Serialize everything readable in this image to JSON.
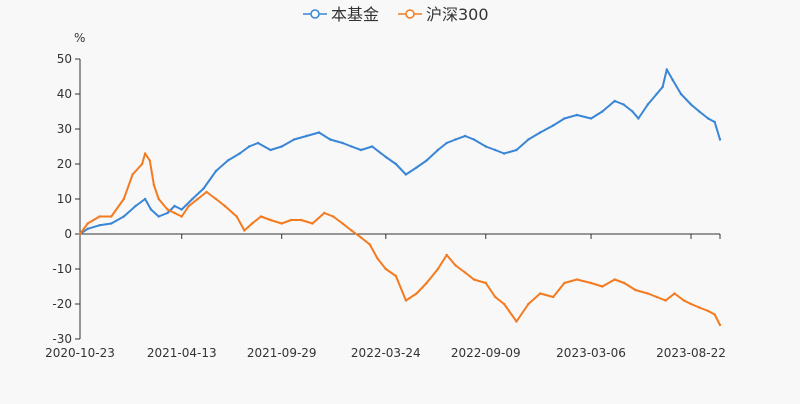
{
  "chart_data": {
    "type": "line",
    "title": "",
    "ylabel": "%",
    "xlabel": "",
    "ylim": [
      -30,
      50
    ],
    "yticks": [
      -30,
      -20,
      -10,
      0,
      10,
      20,
      30,
      40,
      50
    ],
    "xlim": [
      "2020-10-23",
      "2023-10-10"
    ],
    "xticks": [
      "2020-10-23",
      "2021-04-13",
      "2021-09-29",
      "2022-03-24",
      "2022-09-09",
      "2023-03-06",
      "2023-08-22"
    ],
    "grid": false,
    "legend": "top-center",
    "series": [
      {
        "name": "本基金",
        "color": "#3a86d6",
        "points": [
          [
            "2020-10-23",
            0
          ],
          [
            "2020-11-05",
            1.5
          ],
          [
            "2020-11-25",
            2.5
          ],
          [
            "2020-12-15",
            3
          ],
          [
            "2021-01-05",
            5
          ],
          [
            "2021-01-25",
            8
          ],
          [
            "2021-02-10",
            10
          ],
          [
            "2021-02-20",
            7
          ],
          [
            "2021-03-05",
            5
          ],
          [
            "2021-03-20",
            6
          ],
          [
            "2021-04-01",
            8
          ],
          [
            "2021-04-13",
            7
          ],
          [
            "2021-05-01",
            10
          ],
          [
            "2021-05-20",
            13
          ],
          [
            "2021-06-10",
            18
          ],
          [
            "2021-06-30",
            21
          ],
          [
            "2021-07-20",
            23
          ],
          [
            "2021-08-05",
            25
          ],
          [
            "2021-08-20",
            26
          ],
          [
            "2021-09-10",
            24
          ],
          [
            "2021-09-29",
            25
          ],
          [
            "2021-10-20",
            27
          ],
          [
            "2021-11-10",
            28
          ],
          [
            "2021-12-01",
            29
          ],
          [
            "2021-12-20",
            27
          ],
          [
            "2022-01-10",
            26
          ],
          [
            "2022-01-25",
            25
          ],
          [
            "2022-02-10",
            24
          ],
          [
            "2022-03-01",
            25
          ],
          [
            "2022-03-24",
            22
          ],
          [
            "2022-04-10",
            20
          ],
          [
            "2022-04-27",
            17
          ],
          [
            "2022-05-15",
            19
          ],
          [
            "2022-06-01",
            21
          ],
          [
            "2022-06-20",
            24
          ],
          [
            "2022-07-05",
            26
          ],
          [
            "2022-07-20",
            27
          ],
          [
            "2022-08-05",
            28
          ],
          [
            "2022-08-20",
            27
          ],
          [
            "2022-09-09",
            25
          ],
          [
            "2022-09-25",
            24
          ],
          [
            "2022-10-10",
            23
          ],
          [
            "2022-10-31",
            24
          ],
          [
            "2022-11-20",
            27
          ],
          [
            "2022-12-10",
            29
          ],
          [
            "2023-01-01",
            31
          ],
          [
            "2023-01-20",
            33
          ],
          [
            "2023-02-10",
            34
          ],
          [
            "2023-03-06",
            33
          ],
          [
            "2023-03-25",
            35
          ],
          [
            "2023-04-15",
            38
          ],
          [
            "2023-04-30",
            37
          ],
          [
            "2023-05-15",
            35
          ],
          [
            "2023-05-25",
            33
          ],
          [
            "2023-06-10",
            37
          ],
          [
            "2023-06-25",
            40
          ],
          [
            "2023-07-05",
            42
          ],
          [
            "2023-07-12",
            47
          ],
          [
            "2023-07-22",
            44
          ],
          [
            "2023-08-05",
            40
          ],
          [
            "2023-08-22",
            37
          ],
          [
            "2023-09-05",
            35
          ],
          [
            "2023-09-20",
            33
          ],
          [
            "2023-10-01",
            32
          ],
          [
            "2023-10-10",
            27
          ]
        ]
      },
      {
        "name": "沪深300",
        "color": "#f47a20",
        "points": [
          [
            "2020-10-23",
            0
          ],
          [
            "2020-11-05",
            3
          ],
          [
            "2020-11-25",
            5
          ],
          [
            "2020-12-15",
            5
          ],
          [
            "2021-01-05",
            10
          ],
          [
            "2021-01-20",
            17
          ],
          [
            "2021-02-05",
            20
          ],
          [
            "2021-02-10",
            23
          ],
          [
            "2021-02-18",
            21
          ],
          [
            "2021-02-25",
            14
          ],
          [
            "2021-03-05",
            10
          ],
          [
            "2021-03-20",
            7
          ],
          [
            "2021-04-01",
            6
          ],
          [
            "2021-04-13",
            5
          ],
          [
            "2021-04-25",
            8
          ],
          [
            "2021-05-10",
            10
          ],
          [
            "2021-05-25",
            12
          ],
          [
            "2021-06-10",
            10
          ],
          [
            "2021-06-25",
            8
          ],
          [
            "2021-07-15",
            5
          ],
          [
            "2021-07-28",
            1
          ],
          [
            "2021-08-10",
            3
          ],
          [
            "2021-08-25",
            5
          ],
          [
            "2021-09-10",
            4
          ],
          [
            "2021-09-29",
            3
          ],
          [
            "2021-10-15",
            4
          ],
          [
            "2021-11-01",
            4
          ],
          [
            "2021-11-20",
            3
          ],
          [
            "2021-12-10",
            6
          ],
          [
            "2021-12-25",
            5
          ],
          [
            "2022-01-10",
            3
          ],
          [
            "2022-01-25",
            1
          ],
          [
            "2022-02-10",
            -1
          ],
          [
            "2022-02-25",
            -3
          ],
          [
            "2022-03-10",
            -7
          ],
          [
            "2022-03-24",
            -10
          ],
          [
            "2022-04-10",
            -12
          ],
          [
            "2022-04-27",
            -19
          ],
          [
            "2022-05-15",
            -17
          ],
          [
            "2022-06-01",
            -14
          ],
          [
            "2022-06-20",
            -10
          ],
          [
            "2022-07-05",
            -6
          ],
          [
            "2022-07-20",
            -9
          ],
          [
            "2022-08-05",
            -11
          ],
          [
            "2022-08-20",
            -13
          ],
          [
            "2022-09-09",
            -14
          ],
          [
            "2022-09-25",
            -18
          ],
          [
            "2022-10-10",
            -20
          ],
          [
            "2022-10-31",
            -25
          ],
          [
            "2022-11-20",
            -20
          ],
          [
            "2022-12-10",
            -17
          ],
          [
            "2023-01-01",
            -18
          ],
          [
            "2023-01-20",
            -14
          ],
          [
            "2023-02-10",
            -13
          ],
          [
            "2023-03-06",
            -14
          ],
          [
            "2023-03-25",
            -15
          ],
          [
            "2023-04-15",
            -13
          ],
          [
            "2023-05-01",
            -14
          ],
          [
            "2023-05-20",
            -16
          ],
          [
            "2023-06-10",
            -17
          ],
          [
            "2023-06-25",
            -18
          ],
          [
            "2023-07-10",
            -19
          ],
          [
            "2023-07-25",
            -17
          ],
          [
            "2023-08-10",
            -19
          ],
          [
            "2023-08-22",
            -20
          ],
          [
            "2023-09-05",
            -21
          ],
          [
            "2023-09-20",
            -22
          ],
          [
            "2023-10-01",
            -23
          ],
          [
            "2023-10-10",
            -26
          ]
        ]
      }
    ]
  }
}
